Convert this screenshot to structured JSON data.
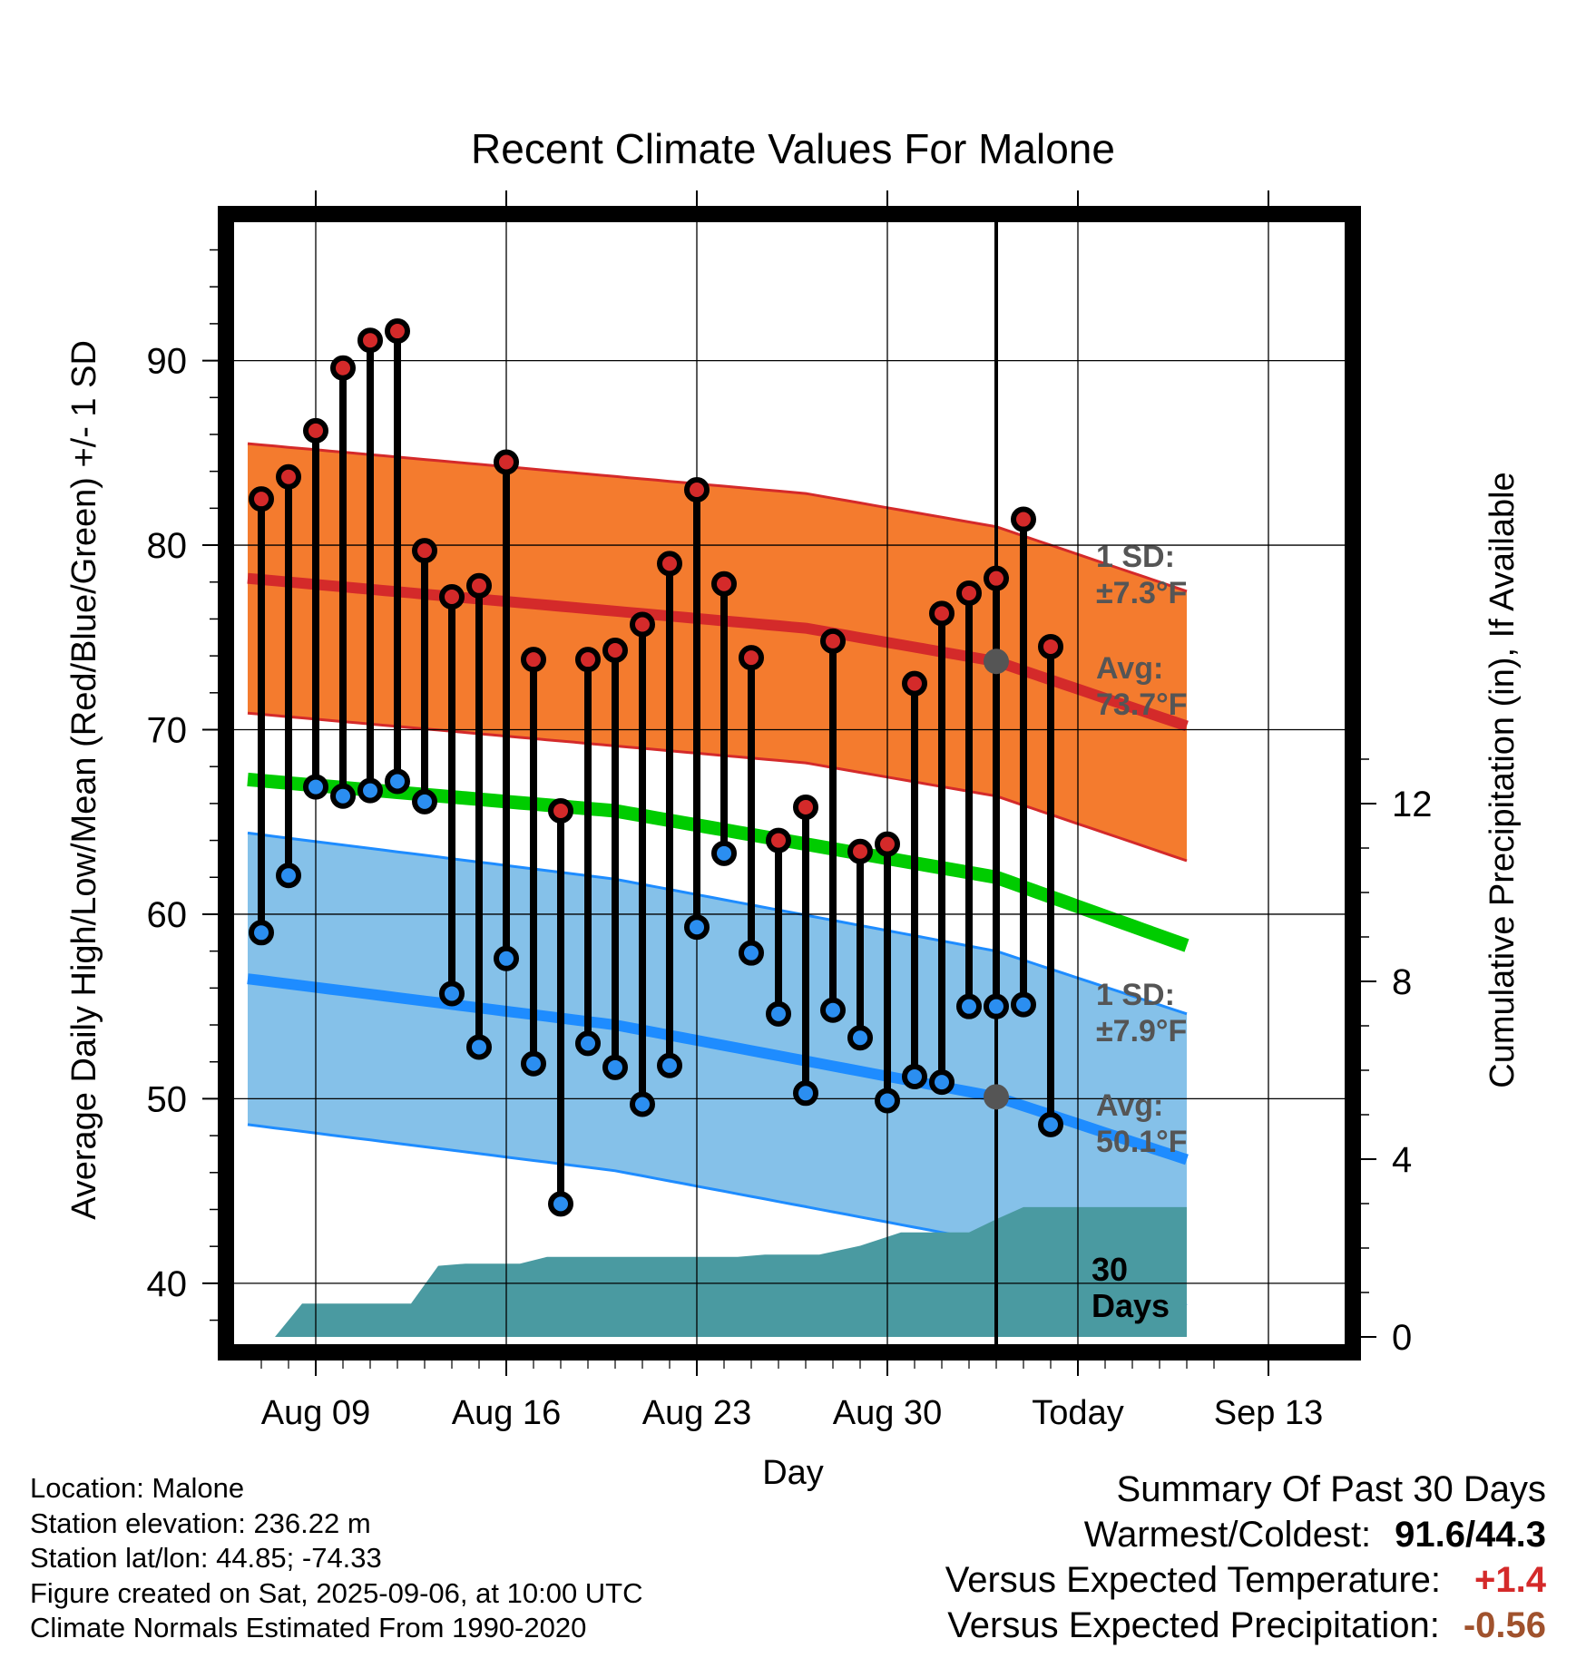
{
  "colors": {
    "high_band": "#f47b2e",
    "high_line": "#d42a2a",
    "low_band": "#85c1e9",
    "low_line": "#1e8cff",
    "mean_line": "#00cc00",
    "precip": "#4a9aa1",
    "high_dot": "#d42a2a",
    "low_dot": "#2b8ef0",
    "annotation": "#555555",
    "temp_summary": "#d42a2a",
    "precip_summary": "#a0522d"
  },
  "chart_data": {
    "type": "line",
    "title": "Recent Climate Values For Malone",
    "xlabel": "Day",
    "ylabel": "Average Daily High/Low/Mean (Red/Blue/Green) +/- 1 SD",
    "ylabel_right": "Cumulative Precipitation (in), If Available",
    "x_ticks": [
      "Aug 09",
      "Aug 16",
      "Aug 23",
      "Aug 30",
      "Today",
      "Sep 13"
    ],
    "y_ticks": [
      40,
      50,
      60,
      70,
      80,
      90
    ],
    "y2_ticks": [
      0,
      4,
      8,
      12
    ],
    "ylim": [
      36.7,
      97.5
    ],
    "y2lim": [
      0,
      14
    ],
    "x_start": "Aug 06",
    "days": [
      "Aug 07",
      "Aug 08",
      "Aug 09",
      "Aug 10",
      "Aug 11",
      "Aug 12",
      "Aug 13",
      "Aug 14",
      "Aug 15",
      "Aug 16",
      "Aug 17",
      "Aug 18",
      "Aug 19",
      "Aug 20",
      "Aug 21",
      "Aug 22",
      "Aug 23",
      "Aug 24",
      "Aug 25",
      "Aug 26",
      "Aug 27",
      "Aug 28",
      "Aug 29",
      "Aug 30",
      "Aug 31",
      "Sep 01",
      "Sep 02",
      "Sep 03",
      "Sep 04",
      "Sep 05"
    ],
    "highs": [
      82.5,
      83.7,
      86.2,
      89.6,
      91.1,
      91.6,
      79.7,
      77.2,
      77.8,
      84.5,
      73.8,
      65.6,
      73.8,
      74.3,
      75.7,
      79.0,
      83.0,
      77.9,
      73.9,
      64.0,
      65.8,
      74.8,
      63.4,
      63.8,
      72.5,
      76.3,
      77.4,
      78.2,
      81.4,
      74.5
    ],
    "lows": [
      59.0,
      62.1,
      66.9,
      66.4,
      66.7,
      67.2,
      66.1,
      55.7,
      52.8,
      57.6,
      51.9,
      44.3,
      53.0,
      51.7,
      49.7,
      51.8,
      59.3,
      63.3,
      57.9,
      54.6,
      50.3,
      54.8,
      53.3,
      49.9,
      51.2,
      50.9,
      55.0,
      55.0,
      55.1,
      48.6
    ],
    "series": [
      {
        "name": "Average High",
        "values": [
          [
            6.5,
            78.2
          ],
          [
            27,
            75.5
          ],
          [
            34,
            73.7
          ],
          [
            41,
            70.2
          ]
        ]
      },
      {
        "name": "Average Low",
        "values": [
          [
            6.5,
            56.5
          ],
          [
            20,
            54.0
          ],
          [
            34,
            50.1
          ],
          [
            41,
            46.7
          ]
        ]
      },
      {
        "name": "Average Mean",
        "values": [
          [
            6.5,
            67.3
          ],
          [
            20,
            65.6
          ],
          [
            34,
            62.0
          ],
          [
            41,
            58.3
          ]
        ]
      },
      {
        "name": "Cumulative Precipitation",
        "values": [
          [
            7.5,
            0
          ],
          [
            8.5,
            0.75
          ],
          [
            12.5,
            0.75
          ],
          [
            13.5,
            1.6
          ],
          [
            14.5,
            1.65
          ],
          [
            16.5,
            1.65
          ],
          [
            17.5,
            1.8
          ],
          [
            24.5,
            1.8
          ],
          [
            25.5,
            1.85
          ],
          [
            27.5,
            1.85
          ],
          [
            29,
            2.05
          ],
          [
            30.5,
            2.35
          ],
          [
            33,
            2.35
          ],
          [
            34,
            2.65
          ],
          [
            35,
            2.92
          ],
          [
            41,
            2.92
          ]
        ]
      }
    ],
    "high_sd": 7.3,
    "low_sd": 7.9,
    "today_day": 34,
    "annotations": {
      "high_sd": [
        "1 SD:",
        "±7.3°F"
      ],
      "high_avg": [
        "Avg:",
        "73.7°F"
      ],
      "low_sd": [
        "1 SD:",
        "±7.9°F"
      ],
      "low_avg": [
        "Avg:",
        "50.1°F"
      ],
      "days": [
        "30",
        "Days"
      ]
    }
  },
  "info": {
    "location": "Location: Malone",
    "elevation": "Station elevation: 236.22 m",
    "latlon": "Station lat/lon: 44.85; -74.33",
    "created": "Figure created on Sat, 2025-09-06, at 10:00 UTC",
    "normals": "Climate Normals Estimated From 1990-2020"
  },
  "summary": {
    "title": "Summary Of Past 30 Days",
    "warmest_label": "Warmest/Coldest:",
    "warmest_value": "91.6/44.3",
    "temp_label": "Versus Expected Temperature:",
    "temp_value": "+1.4",
    "precip_label": "Versus Expected Precipitation:",
    "precip_value": "-0.56"
  }
}
